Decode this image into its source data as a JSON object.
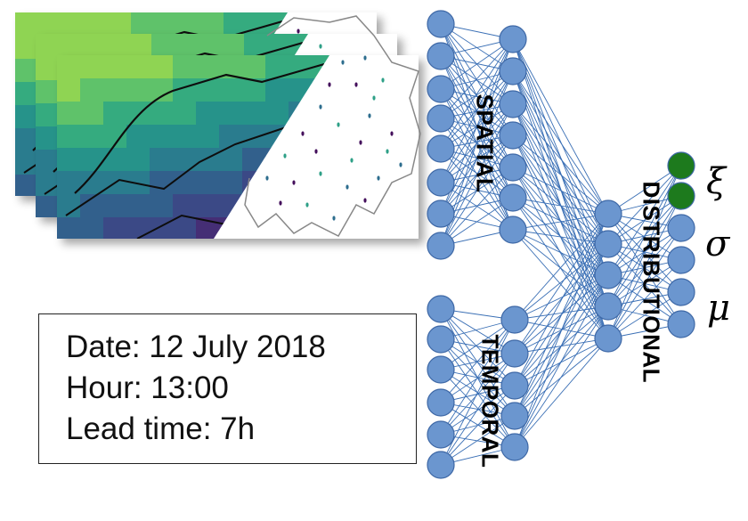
{
  "layers": {
    "spatial": {
      "label": "SPATIAL"
    },
    "temporal": {
      "label": "TEMPORAL"
    },
    "distributional": {
      "label": "DISTRIBUTIONAL"
    }
  },
  "info_box": {
    "date": "Date: 12 July 2018",
    "hour": "Hour: 13:00",
    "lead_time": "Lead time: 7h"
  },
  "outputs": {
    "xi": "ξ",
    "sigma": "σ",
    "mu": "μ"
  },
  "colors": {
    "node_fill": "#6b96cf",
    "node_stroke": "#3e68a6",
    "output_active_fill": "#1d7a1d",
    "edge": "#3a6fb5",
    "map_yellow": "#93d64a",
    "map_green": "#2ea087",
    "map_blue": "#2d6d8e",
    "map_purple": "#440f5c"
  }
}
